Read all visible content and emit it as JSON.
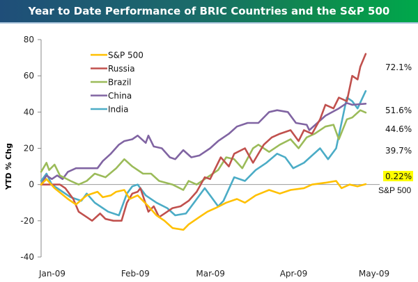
{
  "chart_data": {
    "type": "line",
    "title": "Year to Date Performance of BRIC Countries and the S&P 500",
    "xlabel": "",
    "ylabel": "YTD % Chg",
    "ylim": [
      -40,
      80
    ],
    "yticks": [
      80,
      60,
      40,
      20,
      0,
      -20,
      -40
    ],
    "ytick_labels": [
      "80",
      "60",
      "40",
      "20",
      "0",
      "-20",
      "-40"
    ],
    "xlim_day_of_year": [
      1,
      126
    ],
    "xticks": [
      {
        "label": "Jan-09",
        "day": 1
      },
      {
        "label": "Feb-09",
        "day": 32
      },
      {
        "label": "Mar-09",
        "day": 60
      },
      {
        "label": "Apr-09",
        "day": 91
      },
      {
        "label": "May-09",
        "day": 121
      }
    ],
    "grid": false,
    "legend_position": "top-left",
    "series": [
      {
        "name": "S&P 500",
        "color": "#ffc000",
        "points": [
          [
            1,
            0
          ],
          [
            3,
            3
          ],
          [
            6,
            -2
          ],
          [
            11,
            -8
          ],
          [
            14,
            -11
          ],
          [
            18,
            -6
          ],
          [
            22,
            -4
          ],
          [
            24,
            -7
          ],
          [
            27,
            -6
          ],
          [
            29,
            -4
          ],
          [
            32,
            -3
          ],
          [
            34,
            -8
          ],
          [
            37,
            -6
          ],
          [
            41,
            -12
          ],
          [
            44,
            -17
          ],
          [
            47,
            -20
          ],
          [
            50,
            -24
          ],
          [
            54,
            -25
          ],
          [
            56,
            -22
          ],
          [
            60,
            -18
          ],
          [
            63,
            -15
          ],
          [
            66,
            -13
          ],
          [
            70,
            -10
          ],
          [
            74,
            -8
          ],
          [
            77,
            -10
          ],
          [
            81,
            -6
          ],
          [
            86,
            -3
          ],
          [
            90,
            -5
          ],
          [
            94,
            -3
          ],
          [
            99,
            -2
          ],
          [
            102,
            0
          ],
          [
            107,
            1
          ],
          [
            111,
            2
          ],
          [
            113,
            -2
          ],
          [
            116,
            0
          ],
          [
            119,
            -1
          ],
          [
            122,
            0.22
          ]
        ]
      },
      {
        "name": "Russia",
        "color": "#c0504d",
        "points": [
          [
            1,
            0
          ],
          [
            8,
            0
          ],
          [
            10,
            -2
          ],
          [
            13,
            -8
          ],
          [
            15,
            -15
          ],
          [
            18,
            -18
          ],
          [
            20,
            -20
          ],
          [
            23,
            -16
          ],
          [
            25,
            -19
          ],
          [
            28,
            -20
          ],
          [
            31,
            -20
          ],
          [
            33,
            -10
          ],
          [
            35,
            -5
          ],
          [
            37,
            -4
          ],
          [
            38,
            -2
          ],
          [
            41,
            -15
          ],
          [
            43,
            -12
          ],
          [
            45,
            -18
          ],
          [
            47,
            -16
          ],
          [
            50,
            -13
          ],
          [
            53,
            -12
          ],
          [
            56,
            -9
          ],
          [
            59,
            -4
          ],
          [
            62,
            4
          ],
          [
            64,
            3
          ],
          [
            68,
            15
          ],
          [
            71,
            10
          ],
          [
            73,
            17
          ],
          [
            77,
            20
          ],
          [
            80,
            12
          ],
          [
            84,
            22
          ],
          [
            87,
            26
          ],
          [
            90,
            28
          ],
          [
            94,
            30
          ],
          [
            97,
            24
          ],
          [
            99,
            30
          ],
          [
            102,
            28
          ],
          [
            105,
            36
          ],
          [
            107,
            44
          ],
          [
            110,
            42
          ],
          [
            112,
            48
          ],
          [
            115,
            46
          ],
          [
            117,
            60
          ],
          [
            119,
            58
          ],
          [
            120,
            65
          ],
          [
            122,
            72.1
          ]
        ]
      },
      {
        "name": "Brazil",
        "color": "#9bbb59",
        "points": [
          [
            1,
            7
          ],
          [
            3,
            12
          ],
          [
            4,
            8
          ],
          [
            6,
            11
          ],
          [
            8,
            5
          ],
          [
            12,
            2
          ],
          [
            15,
            0
          ],
          [
            18,
            2
          ],
          [
            21,
            6
          ],
          [
            25,
            4
          ],
          [
            29,
            9
          ],
          [
            32,
            14
          ],
          [
            35,
            10
          ],
          [
            39,
            6
          ],
          [
            42,
            6
          ],
          [
            45,
            2
          ],
          [
            50,
            0
          ],
          [
            54,
            -3
          ],
          [
            56,
            2
          ],
          [
            59,
            0
          ],
          [
            63,
            4
          ],
          [
            67,
            8
          ],
          [
            70,
            15
          ],
          [
            73,
            14
          ],
          [
            76,
            9
          ],
          [
            80,
            20
          ],
          [
            82,
            22
          ],
          [
            86,
            18
          ],
          [
            90,
            22
          ],
          [
            94,
            25
          ],
          [
            97,
            20
          ],
          [
            100,
            26
          ],
          [
            103,
            28
          ],
          [
            107,
            32
          ],
          [
            110,
            33
          ],
          [
            112,
            25
          ],
          [
            115,
            36
          ],
          [
            117,
            37
          ],
          [
            120,
            41
          ],
          [
            122,
            39.7
          ]
        ]
      },
      {
        "name": "China",
        "color": "#8064a2",
        "points": [
          [
            1,
            0
          ],
          [
            3,
            5
          ],
          [
            5,
            3
          ],
          [
            7,
            5
          ],
          [
            9,
            3
          ],
          [
            11,
            7
          ],
          [
            14,
            9
          ],
          [
            17,
            9
          ],
          [
            22,
            9
          ],
          [
            24,
            13
          ],
          [
            27,
            17
          ],
          [
            30,
            22
          ],
          [
            32,
            24
          ],
          [
            35,
            25
          ],
          [
            37,
            27
          ],
          [
            40,
            23
          ],
          [
            41,
            27
          ],
          [
            43,
            21
          ],
          [
            46,
            20
          ],
          [
            49,
            15
          ],
          [
            51,
            14
          ],
          [
            54,
            19
          ],
          [
            57,
            15
          ],
          [
            60,
            16
          ],
          [
            64,
            20
          ],
          [
            67,
            24
          ],
          [
            71,
            28
          ],
          [
            74,
            32
          ],
          [
            78,
            34
          ],
          [
            82,
            34
          ],
          [
            86,
            40
          ],
          [
            89,
            41
          ],
          [
            93,
            40
          ],
          [
            96,
            34
          ],
          [
            100,
            33
          ],
          [
            101,
            30
          ],
          [
            107,
            38
          ],
          [
            112,
            42
          ],
          [
            115,
            45
          ],
          [
            117,
            44
          ],
          [
            122,
            44.6
          ]
        ]
      },
      {
        "name": "India",
        "color": "#4bacc6",
        "points": [
          [
            1,
            2
          ],
          [
            3,
            6
          ],
          [
            5,
            0
          ],
          [
            8,
            -3
          ],
          [
            12,
            -7
          ],
          [
            16,
            -9
          ],
          [
            18,
            -5
          ],
          [
            21,
            -10
          ],
          [
            23,
            -12
          ],
          [
            26,
            -15
          ],
          [
            30,
            -17
          ],
          [
            33,
            -5
          ],
          [
            35,
            -1
          ],
          [
            37,
            0
          ],
          [
            40,
            -6
          ],
          [
            44,
            -10
          ],
          [
            48,
            -13
          ],
          [
            51,
            -17
          ],
          [
            55,
            -16
          ],
          [
            58,
            -10
          ],
          [
            62,
            -2
          ],
          [
            64,
            -6
          ],
          [
            67,
            -12
          ],
          [
            69,
            -9
          ],
          [
            73,
            4
          ],
          [
            77,
            2
          ],
          [
            81,
            8
          ],
          [
            85,
            12
          ],
          [
            89,
            17
          ],
          [
            92,
            15
          ],
          [
            95,
            9
          ],
          [
            99,
            12
          ],
          [
            102,
            16
          ],
          [
            105,
            20
          ],
          [
            108,
            14
          ],
          [
            111,
            20
          ],
          [
            115,
            48
          ],
          [
            117,
            46
          ],
          [
            119,
            42
          ],
          [
            122,
            51.6
          ]
        ]
      }
    ],
    "end_labels": [
      {
        "series": "Russia",
        "text": "72.1%"
      },
      {
        "series": "India",
        "text": "51.6%"
      },
      {
        "series": "China",
        "text": "44.6%"
      },
      {
        "series": "Brazil",
        "text": "39.7%"
      },
      {
        "series": "S&P 500",
        "text": "0.22%",
        "highlight": "#ffff00"
      }
    ],
    "annotations": [
      {
        "text": "S&P 500",
        "near": "S&P 500 end value"
      }
    ]
  }
}
